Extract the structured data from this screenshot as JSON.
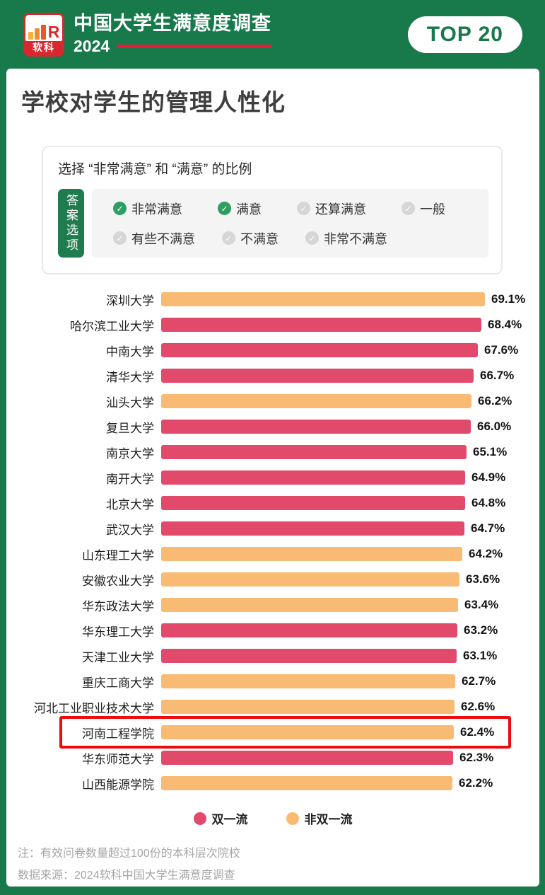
{
  "header": {
    "logo_text": "软科",
    "logo_icon": "bar-chart-logo-icon",
    "title": "中国大学生满意度调查",
    "year": "2024",
    "badge": "TOP 20"
  },
  "page_title": "学校对学生的管理人性化",
  "options_box": {
    "title": "选择 “非常满意” 和 “满意” 的比例",
    "side_label": "答案选项",
    "options": [
      {
        "label": "非常满意",
        "checked": true
      },
      {
        "label": "满意",
        "checked": true
      },
      {
        "label": "还算满意",
        "checked": false
      },
      {
        "label": "一般",
        "checked": false
      },
      {
        "label": "有些不满意",
        "checked": false
      },
      {
        "label": "不满意",
        "checked": false
      },
      {
        "label": "非常不满意",
        "checked": false
      }
    ]
  },
  "chart_data": {
    "type": "bar",
    "orientation": "horizontal",
    "title": "学校对学生的管理人性化",
    "unit": "%",
    "xlim": [
      0,
      70
    ],
    "grid": false,
    "legend_position": "bottom",
    "legend": [
      {
        "label": "双一流",
        "color": "#e24a6c"
      },
      {
        "label": "非双一流",
        "color": "#f9ba74"
      }
    ],
    "rows": [
      {
        "name": "深圳大学",
        "value": 69.1,
        "group": "非双一流",
        "highlight": false
      },
      {
        "name": "哈尔滨工业大学",
        "value": 68.4,
        "group": "双一流",
        "highlight": false
      },
      {
        "name": "中南大学",
        "value": 67.6,
        "group": "双一流",
        "highlight": false
      },
      {
        "name": "清华大学",
        "value": 66.7,
        "group": "双一流",
        "highlight": false
      },
      {
        "name": "汕头大学",
        "value": 66.2,
        "group": "非双一流",
        "highlight": false
      },
      {
        "name": "复旦大学",
        "value": 66.0,
        "group": "双一流",
        "highlight": false
      },
      {
        "name": "南京大学",
        "value": 65.1,
        "group": "双一流",
        "highlight": false
      },
      {
        "name": "南开大学",
        "value": 64.9,
        "group": "双一流",
        "highlight": false
      },
      {
        "name": "北京大学",
        "value": 64.8,
        "group": "双一流",
        "highlight": false
      },
      {
        "name": "武汉大学",
        "value": 64.7,
        "group": "双一流",
        "highlight": false
      },
      {
        "name": "山东理工大学",
        "value": 64.2,
        "group": "非双一流",
        "highlight": false
      },
      {
        "name": "安徽农业大学",
        "value": 63.6,
        "group": "非双一流",
        "highlight": false
      },
      {
        "name": "华东政法大学",
        "value": 63.4,
        "group": "非双一流",
        "highlight": false
      },
      {
        "name": "华东理工大学",
        "value": 63.2,
        "group": "双一流",
        "highlight": false
      },
      {
        "name": "天津工业大学",
        "value": 63.1,
        "group": "双一流",
        "highlight": false
      },
      {
        "name": "重庆工商大学",
        "value": 62.7,
        "group": "非双一流",
        "highlight": false
      },
      {
        "name": "河北工业职业技术大学",
        "value": 62.6,
        "group": "非双一流",
        "highlight": false
      },
      {
        "name": "河南工程学院",
        "value": 62.4,
        "group": "非双一流",
        "highlight": true
      },
      {
        "name": "华东师范大学",
        "value": 62.3,
        "group": "双一流",
        "highlight": false
      },
      {
        "name": "山西能源学院",
        "value": 62.2,
        "group": "非双一流",
        "highlight": false
      }
    ]
  },
  "footer": {
    "note": "注：有效问卷数量超过100份的本科层次院校",
    "source": "数据来源：2024软科中国大学生满意度调查"
  },
  "colors": {
    "background_green": "#18794a",
    "tag_green": "#1e7c4e",
    "check_green": "#2f9e63",
    "check_gray": "#d6d6d6",
    "bar_pink": "#e24a6c",
    "bar_orange": "#f9ba74",
    "highlight_red": "#ed0b0c",
    "logo_red": "#d7282e",
    "accent_line_red": "#e41e3a"
  }
}
